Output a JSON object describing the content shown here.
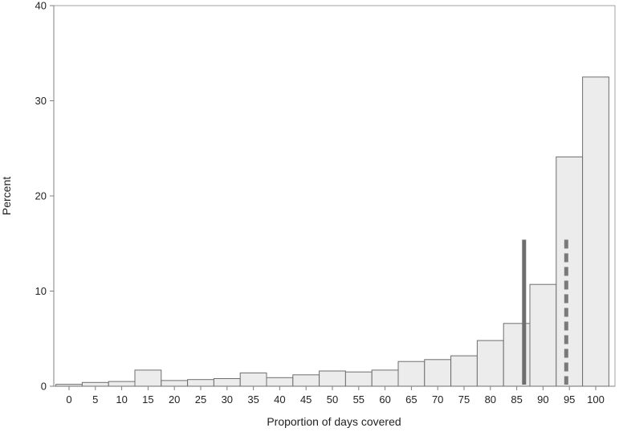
{
  "chart_data": {
    "type": "bar",
    "categories": [
      "0",
      "5",
      "10",
      "15",
      "20",
      "25",
      "30",
      "35",
      "40",
      "45",
      "50",
      "55",
      "60",
      "65",
      "70",
      "75",
      "80",
      "85",
      "90",
      "95",
      "100"
    ],
    "values": [
      0.2,
      0.4,
      0.5,
      1.7,
      0.6,
      0.7,
      0.8,
      1.4,
      0.9,
      1.2,
      1.6,
      1.5,
      1.7,
      2.6,
      2.8,
      3.2,
      4.8,
      6.6,
      10.7,
      24.1,
      32.5
    ],
    "xlabel": "Proportion of days covered",
    "ylabel": "Percent",
    "ylim": [
      0,
      40
    ],
    "yticks": [
      "0",
      "10",
      "20",
      "30",
      "40"
    ],
    "reference_lines": [
      {
        "style": "solid",
        "x": 86.4,
        "y_top": 15.4
      },
      {
        "style": "dashed",
        "x": 94.4,
        "y_top": 15.4
      }
    ],
    "grid": false,
    "legend": "none"
  }
}
